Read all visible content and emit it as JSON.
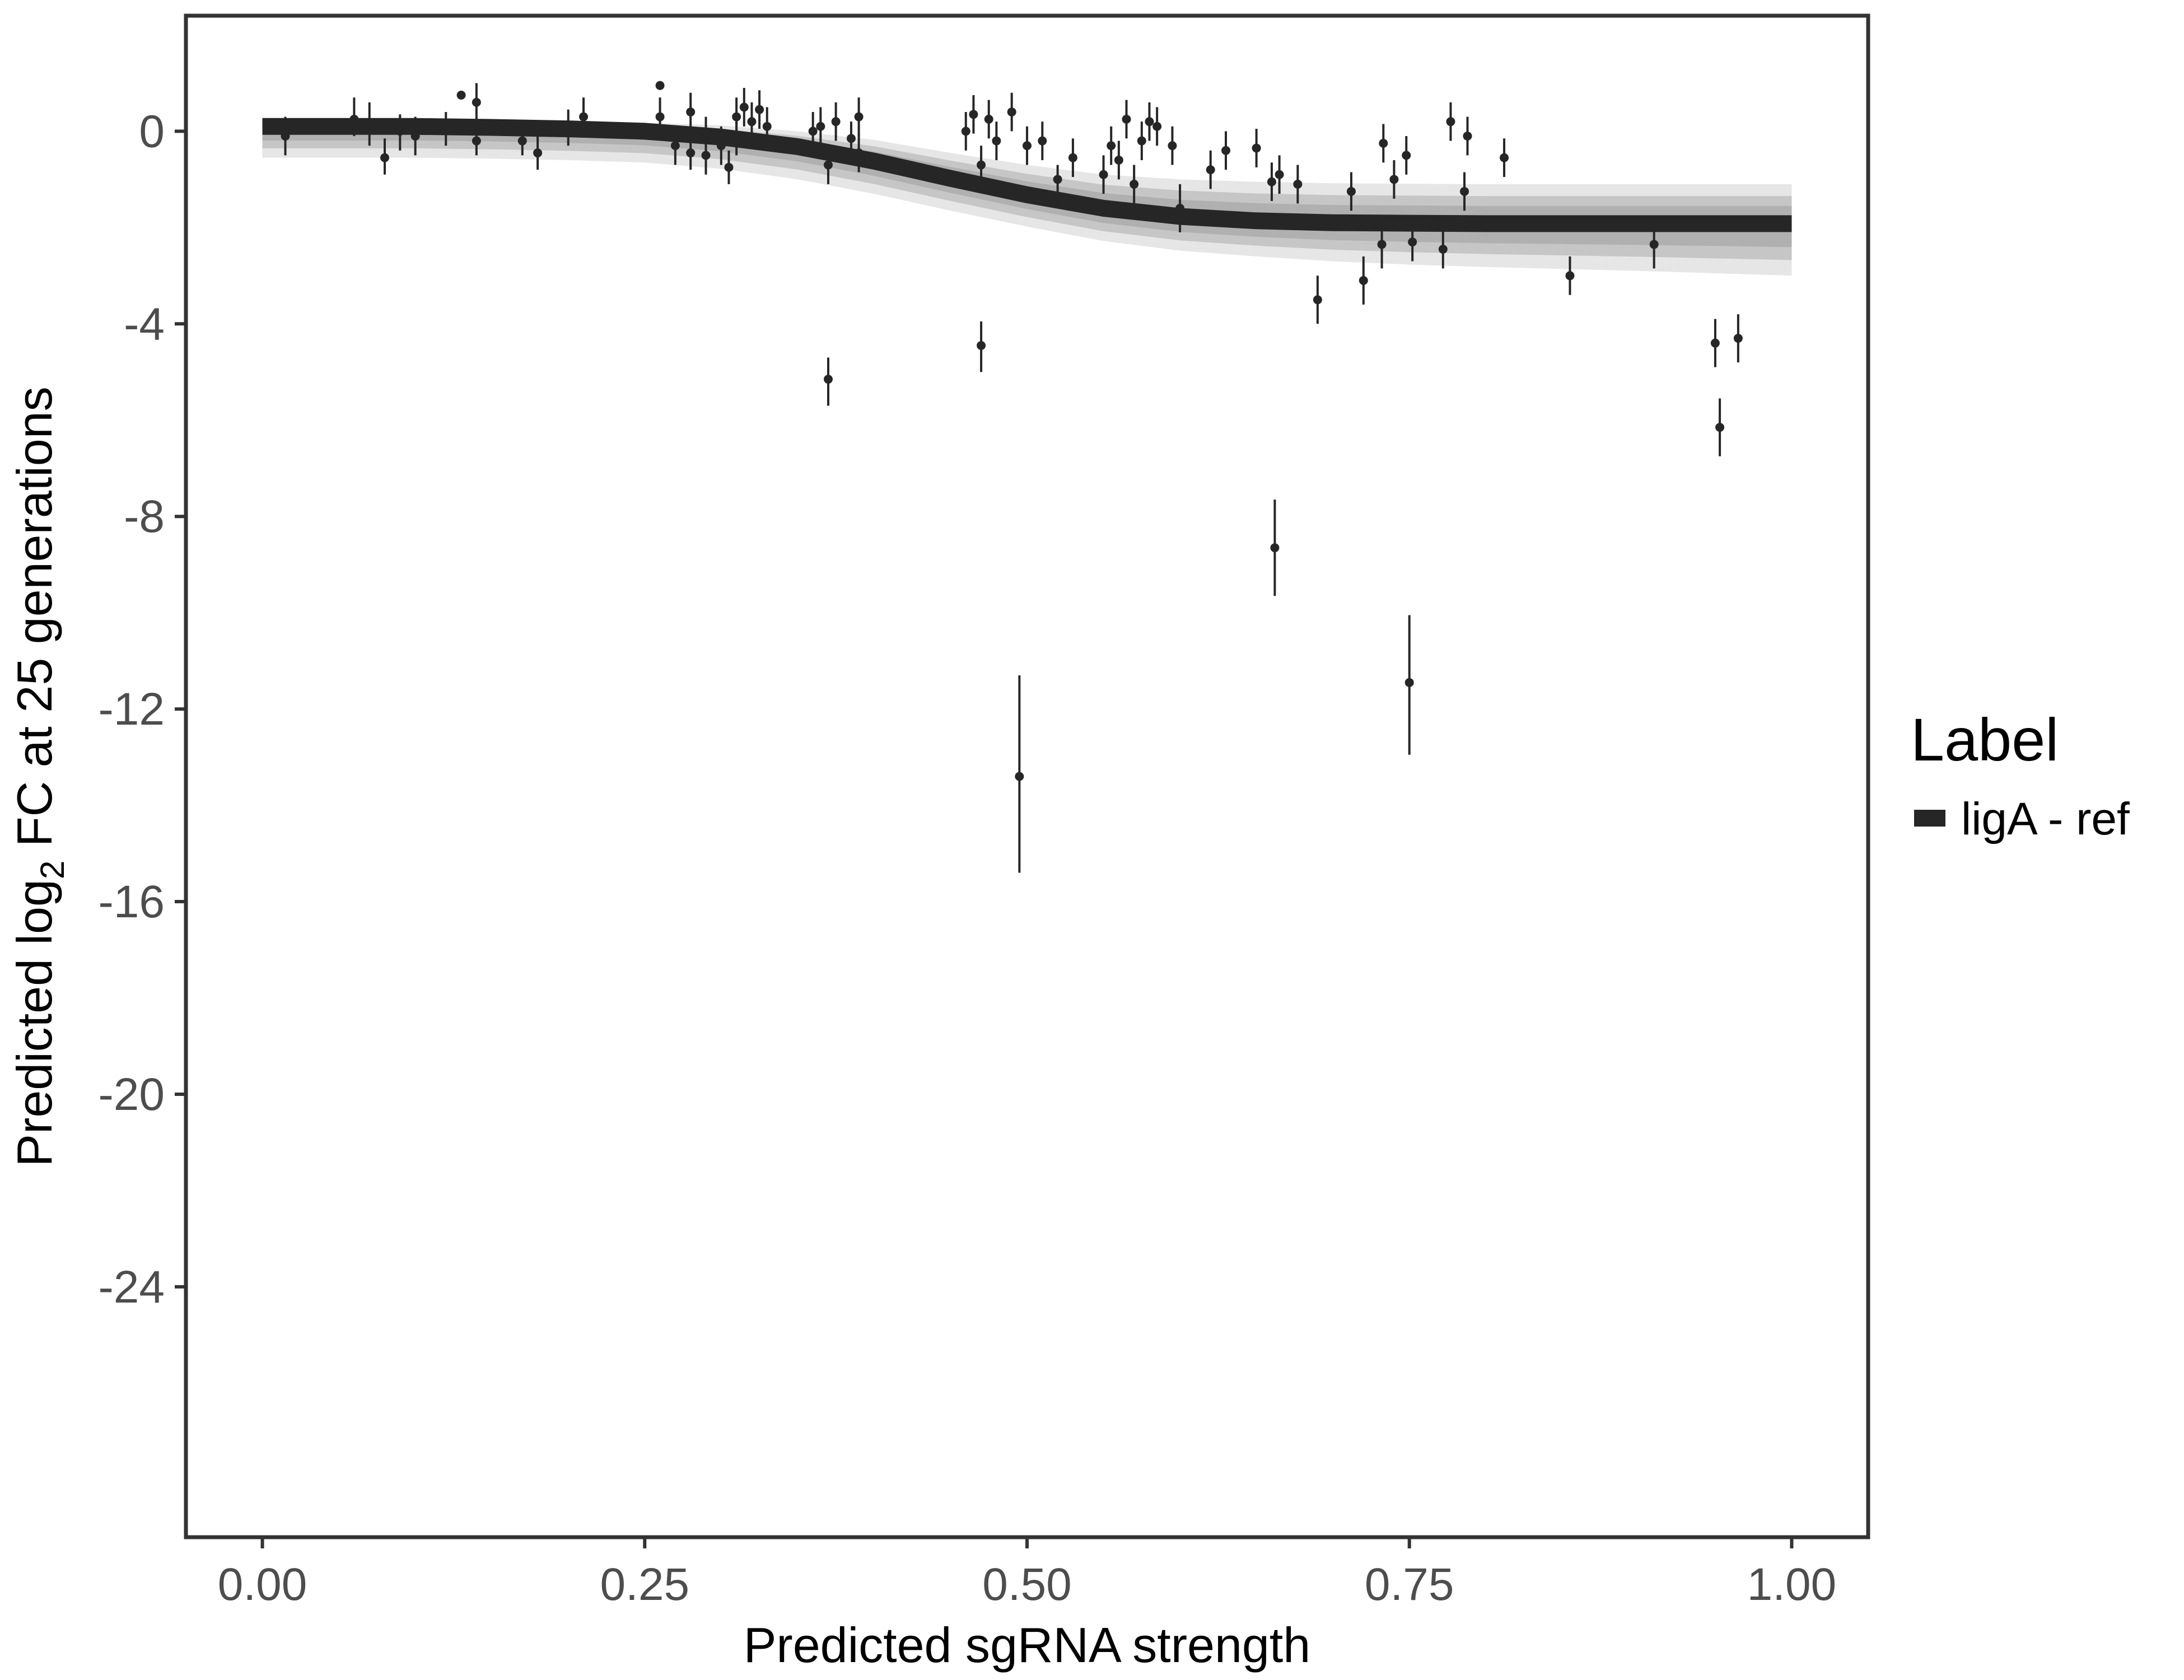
{
  "chart_data": {
    "type": "scatter",
    "title": "",
    "xlabel": "Predicted sgRNA strength",
    "ylabel_parts": [
      "Predicted  log",
      "2",
      " FC at 25 generations"
    ],
    "xlim": [
      -0.05,
      1.05
    ],
    "ylim": [
      -29.2,
      2.4
    ],
    "x_ticks": [
      0.0,
      0.25,
      0.5,
      0.75,
      1.0
    ],
    "x_tick_labels": [
      "0.00",
      "0.25",
      "0.50",
      "0.75",
      "1.00"
    ],
    "y_ticks": [
      0,
      -4,
      -8,
      -12,
      -16,
      -20,
      -24
    ],
    "y_tick_labels": [
      "0",
      "-4",
      "-8",
      "-12",
      "-16",
      "-20",
      "-24"
    ],
    "grid": false,
    "legend": {
      "title": "Label",
      "position": "right",
      "entries": [
        {
          "label": "ligA - ref",
          "color": "#262626"
        }
      ]
    },
    "fit": {
      "name": "ligA - ref",
      "color": "#262626",
      "band_color": "#a6a6a6",
      "x": [
        0.0,
        0.05,
        0.1,
        0.15,
        0.2,
        0.25,
        0.3,
        0.35,
        0.4,
        0.45,
        0.5,
        0.55,
        0.6,
        0.65,
        0.7,
        0.75,
        0.8,
        0.85,
        0.9,
        0.95,
        1.0
      ],
      "y": [
        0.1,
        0.1,
        0.1,
        0.08,
        0.05,
        0.0,
        -0.12,
        -0.32,
        -0.62,
        -0.98,
        -1.32,
        -1.6,
        -1.77,
        -1.86,
        -1.9,
        -1.91,
        -1.92,
        -1.92,
        -1.92,
        -1.92,
        -1.92
      ],
      "upper": [
        0.25,
        0.25,
        0.25,
        0.23,
        0.21,
        0.18,
        0.12,
        0.0,
        -0.18,
        -0.45,
        -0.7,
        -0.9,
        -1.0,
        -1.05,
        -1.08,
        -1.09,
        -1.1,
        -1.1,
        -1.1,
        -1.1,
        -1.1
      ],
      "lower": [
        -0.55,
        -0.55,
        -0.55,
        -0.57,
        -0.6,
        -0.65,
        -0.78,
        -1.0,
        -1.3,
        -1.65,
        -1.98,
        -2.28,
        -2.48,
        -2.6,
        -2.7,
        -2.77,
        -2.82,
        -2.86,
        -2.9,
        -2.95,
        -3.0
      ]
    },
    "points": [
      {
        "x": 0.015,
        "y": -0.1,
        "lo": -0.5,
        "hi": 0.3
      },
      {
        "x": 0.06,
        "y": 0.25,
        "lo": -0.1,
        "hi": 0.7
      },
      {
        "x": 0.07,
        "y": 0.15,
        "lo": -0.3,
        "hi": 0.6
      },
      {
        "x": 0.08,
        "y": -0.55,
        "lo": -0.9,
        "hi": -0.15
      },
      {
        "x": 0.09,
        "y": 0.0,
        "lo": -0.4,
        "hi": 0.35
      },
      {
        "x": 0.1,
        "y": -0.1,
        "lo": -0.5,
        "hi": 0.3
      },
      {
        "x": 0.12,
        "y": 0.05,
        "lo": -0.3,
        "hi": 0.4
      },
      {
        "x": 0.13,
        "y": 0.75,
        "lo": 0.75,
        "hi": 0.75
      },
      {
        "x": 0.14,
        "y": 0.6,
        "lo": 0.2,
        "hi": 1.0
      },
      {
        "x": 0.14,
        "y": -0.2,
        "lo": -0.5,
        "hi": 0.15
      },
      {
        "x": 0.17,
        "y": -0.2,
        "lo": -0.5,
        "hi": 0.1
      },
      {
        "x": 0.18,
        "y": -0.45,
        "lo": -0.8,
        "hi": -0.1
      },
      {
        "x": 0.2,
        "y": 0.1,
        "lo": -0.3,
        "hi": 0.45
      },
      {
        "x": 0.21,
        "y": 0.3,
        "lo": -0.1,
        "hi": 0.7
      },
      {
        "x": 0.26,
        "y": 0.95,
        "lo": 0.95,
        "hi": 0.95
      },
      {
        "x": 0.26,
        "y": 0.3,
        "lo": -0.1,
        "hi": 0.7
      },
      {
        "x": 0.27,
        "y": -0.3,
        "lo": -0.7,
        "hi": 0.1
      },
      {
        "x": 0.28,
        "y": 0.4,
        "lo": 0.0,
        "hi": 0.8
      },
      {
        "x": 0.28,
        "y": -0.45,
        "lo": -0.8,
        "hi": -0.1
      },
      {
        "x": 0.29,
        "y": -0.1,
        "lo": -0.5,
        "hi": 0.3
      },
      {
        "x": 0.29,
        "y": -0.5,
        "lo": -0.9,
        "hi": -0.1
      },
      {
        "x": 0.3,
        "y": -0.3,
        "lo": -0.7,
        "hi": 0.1
      },
      {
        "x": 0.305,
        "y": -0.75,
        "lo": -1.1,
        "hi": -0.4
      },
      {
        "x": 0.31,
        "y": 0.3,
        "lo": -0.1,
        "hi": 0.7
      },
      {
        "x": 0.31,
        "y": -0.1,
        "lo": -0.5,
        "hi": 0.3
      },
      {
        "x": 0.315,
        "y": 0.5,
        "lo": 0.1,
        "hi": 0.9
      },
      {
        "x": 0.32,
        "y": 0.2,
        "lo": -0.2,
        "hi": 0.6
      },
      {
        "x": 0.325,
        "y": 0.45,
        "lo": 0.05,
        "hi": 0.85
      },
      {
        "x": 0.33,
        "y": 0.1,
        "lo": -0.3,
        "hi": 0.5
      },
      {
        "x": 0.36,
        "y": 0.0,
        "lo": -0.4,
        "hi": 0.4
      },
      {
        "x": 0.365,
        "y": 0.1,
        "lo": -0.3,
        "hi": 0.5
      },
      {
        "x": 0.37,
        "y": -5.15,
        "lo": -5.7,
        "hi": -4.7
      },
      {
        "x": 0.37,
        "y": -0.7,
        "lo": -1.1,
        "hi": -0.3
      },
      {
        "x": 0.375,
        "y": 0.2,
        "lo": -0.2,
        "hi": 0.6
      },
      {
        "x": 0.385,
        "y": -0.15,
        "lo": -0.5,
        "hi": 0.2
      },
      {
        "x": 0.39,
        "y": 0.3,
        "lo": -0.1,
        "hi": 0.7
      },
      {
        "x": 0.39,
        "y": -0.45,
        "lo": -0.85,
        "hi": -0.05
      },
      {
        "x": 0.46,
        "y": 0.0,
        "lo": -0.4,
        "hi": 0.4
      },
      {
        "x": 0.465,
        "y": 0.35,
        "lo": -0.05,
        "hi": 0.75
      },
      {
        "x": 0.47,
        "y": -0.7,
        "lo": -1.1,
        "hi": -0.3
      },
      {
        "x": 0.47,
        "y": -4.45,
        "lo": -5.0,
        "hi": -3.95
      },
      {
        "x": 0.475,
        "y": 0.25,
        "lo": -0.15,
        "hi": 0.65
      },
      {
        "x": 0.48,
        "y": -0.2,
        "lo": -0.6,
        "hi": 0.2
      },
      {
        "x": 0.495,
        "y": -13.4,
        "lo": -15.4,
        "hi": -11.3
      },
      {
        "x": 0.49,
        "y": 0.4,
        "lo": 0.0,
        "hi": 0.8
      },
      {
        "x": 0.5,
        "y": -0.3,
        "lo": -0.7,
        "hi": 0.1
      },
      {
        "x": 0.51,
        "y": -0.2,
        "lo": -0.6,
        "hi": 0.2
      },
      {
        "x": 0.52,
        "y": -1.0,
        "lo": -1.3,
        "hi": -0.7
      },
      {
        "x": 0.53,
        "y": -0.55,
        "lo": -0.95,
        "hi": -0.15
      },
      {
        "x": 0.55,
        "y": -0.9,
        "lo": -1.3,
        "hi": -0.5
      },
      {
        "x": 0.555,
        "y": -0.3,
        "lo": -0.7,
        "hi": 0.1
      },
      {
        "x": 0.56,
        "y": -0.6,
        "lo": -1.0,
        "hi": -0.2
      },
      {
        "x": 0.565,
        "y": 0.25,
        "lo": -0.15,
        "hi": 0.65
      },
      {
        "x": 0.57,
        "y": -1.1,
        "lo": -1.5,
        "hi": -0.7
      },
      {
        "x": 0.575,
        "y": -0.2,
        "lo": -0.6,
        "hi": 0.2
      },
      {
        "x": 0.58,
        "y": 0.2,
        "lo": -0.2,
        "hi": 0.6
      },
      {
        "x": 0.585,
        "y": 0.1,
        "lo": -0.3,
        "hi": 0.5
      },
      {
        "x": 0.595,
        "y": -0.3,
        "lo": -0.7,
        "hi": 0.1
      },
      {
        "x": 0.6,
        "y": -1.6,
        "lo": -2.1,
        "hi": -1.1
      },
      {
        "x": 0.62,
        "y": -0.8,
        "lo": -1.2,
        "hi": -0.4
      },
      {
        "x": 0.63,
        "y": -0.4,
        "lo": -0.8,
        "hi": 0.0
      },
      {
        "x": 0.65,
        "y": -0.35,
        "lo": -0.75,
        "hi": 0.05
      },
      {
        "x": 0.66,
        "y": -1.05,
        "lo": -1.45,
        "hi": -0.65
      },
      {
        "x": 0.662,
        "y": -8.65,
        "lo": -9.65,
        "hi": -7.65
      },
      {
        "x": 0.665,
        "y": -0.9,
        "lo": -1.3,
        "hi": -0.5
      },
      {
        "x": 0.677,
        "y": -1.1,
        "lo": -1.5,
        "hi": -0.7
      },
      {
        "x": 0.69,
        "y": -3.5,
        "lo": -4.0,
        "hi": -3.0
      },
      {
        "x": 0.712,
        "y": -1.25,
        "lo": -1.65,
        "hi": -0.85
      },
      {
        "x": 0.72,
        "y": -3.1,
        "lo": -3.6,
        "hi": -2.6
      },
      {
        "x": 0.732,
        "y": -2.35,
        "lo": -2.85,
        "hi": -1.85
      },
      {
        "x": 0.733,
        "y": -0.25,
        "lo": -0.65,
        "hi": 0.15
      },
      {
        "x": 0.74,
        "y": -1.0,
        "lo": -1.4,
        "hi": -0.6
      },
      {
        "x": 0.748,
        "y": -0.5,
        "lo": -0.9,
        "hi": -0.1
      },
      {
        "x": 0.75,
        "y": -11.45,
        "lo": -12.95,
        "hi": -10.05
      },
      {
        "x": 0.752,
        "y": -2.3,
        "lo": -2.7,
        "hi": -1.9
      },
      {
        "x": 0.772,
        "y": -2.45,
        "lo": -2.85,
        "hi": -2.05
      },
      {
        "x": 0.777,
        "y": 0.2,
        "lo": -0.2,
        "hi": 0.6
      },
      {
        "x": 0.786,
        "y": -1.25,
        "lo": -1.65,
        "hi": -0.85
      },
      {
        "x": 0.788,
        "y": -0.1,
        "lo": -0.5,
        "hi": 0.3
      },
      {
        "x": 0.812,
        "y": -0.55,
        "lo": -0.95,
        "hi": -0.15
      },
      {
        "x": 0.855,
        "y": -3.0,
        "lo": -3.4,
        "hi": -2.6
      },
      {
        "x": 0.91,
        "y": -2.35,
        "lo": -2.85,
        "hi": -1.85
      },
      {
        "x": 0.95,
        "y": -4.4,
        "lo": -4.9,
        "hi": -3.9
      },
      {
        "x": 0.953,
        "y": -6.15,
        "lo": -6.75,
        "hi": -5.55
      },
      {
        "x": 0.965,
        "y": -4.3,
        "lo": -4.8,
        "hi": -3.8
      }
    ]
  }
}
